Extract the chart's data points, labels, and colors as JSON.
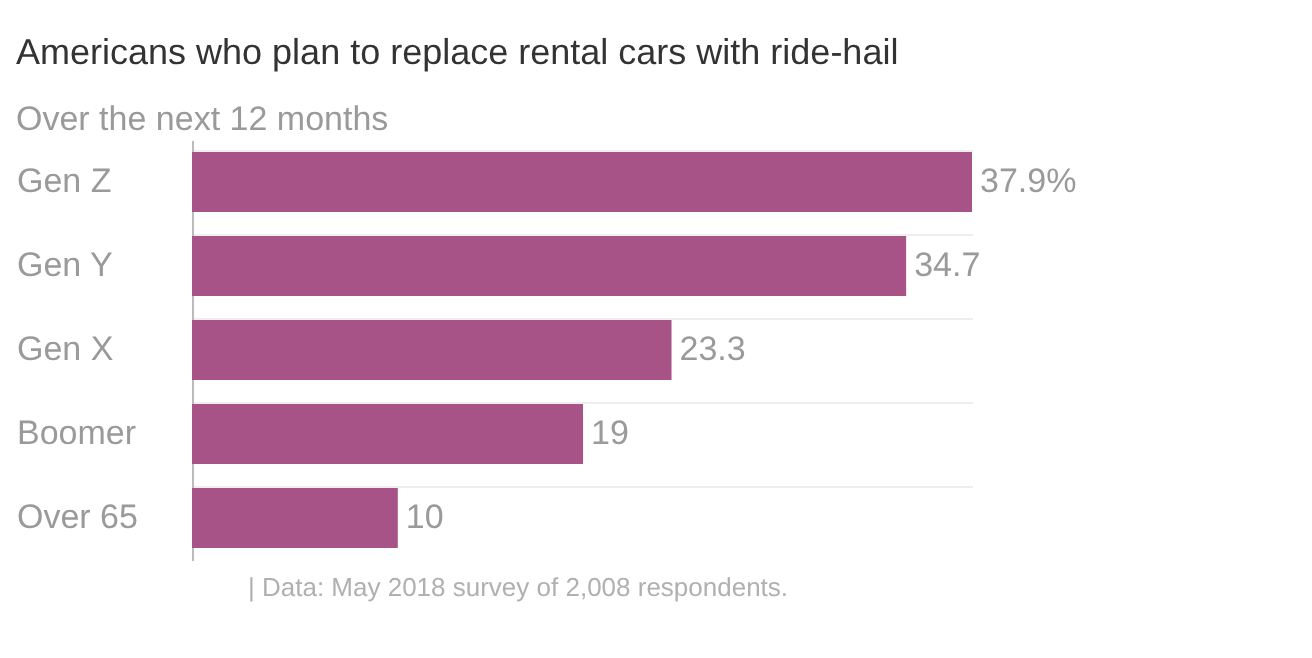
{
  "chart_data": {
    "type": "bar",
    "orientation": "horizontal",
    "title": "Americans who plan to replace rental cars with ride-hail",
    "subtitle": "Over the next 12 months",
    "categories": [
      "Gen Z",
      "Gen Y",
      "Gen X",
      "Boomer",
      "Over 65"
    ],
    "values": [
      37.9,
      34.7,
      23.3,
      19,
      10
    ],
    "value_labels": [
      "37.9%",
      "34.7",
      "23.3",
      "19",
      "10"
    ],
    "color": "#a85388",
    "grid": "y",
    "annotations": [
      "| Data: May 2018 survey of 2,008 respondents."
    ]
  }
}
